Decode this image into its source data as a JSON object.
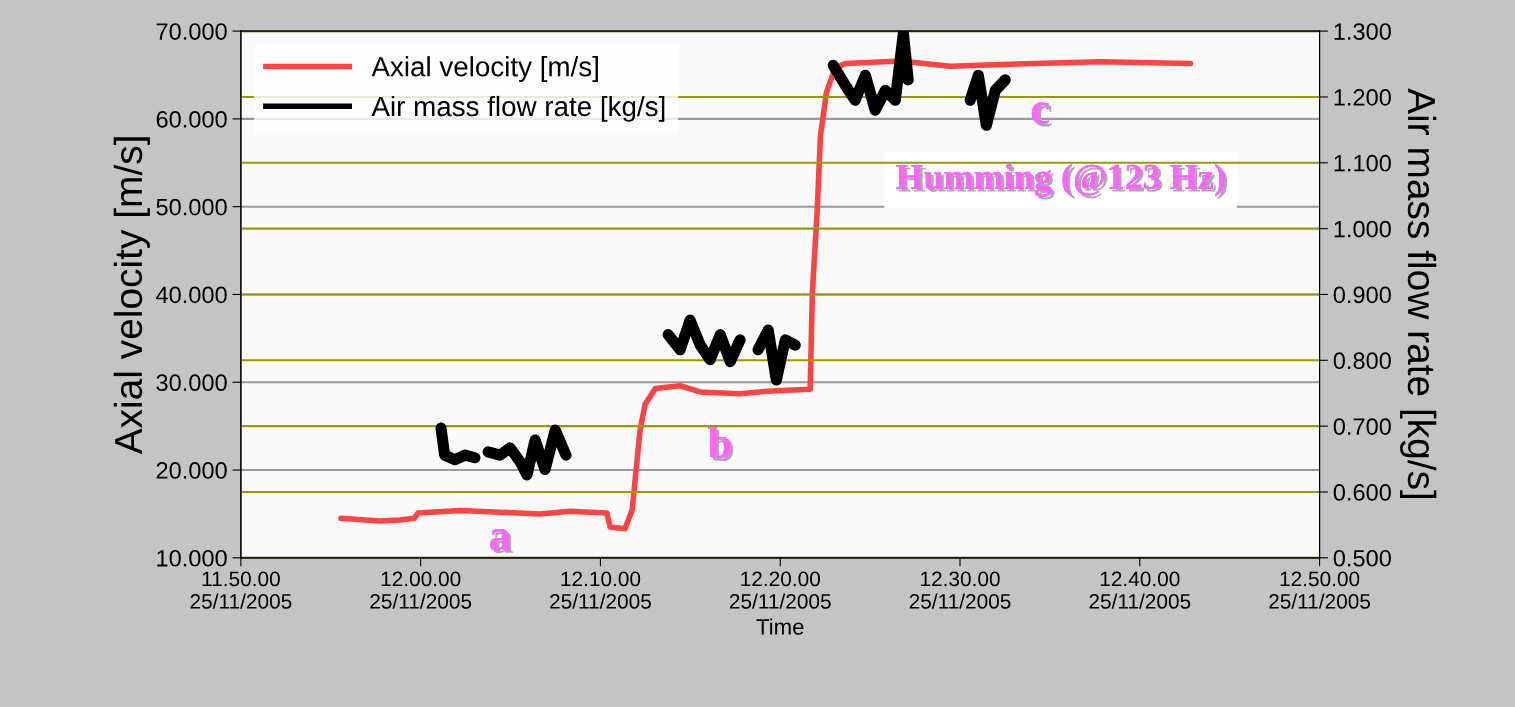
{
  "chart_data": {
    "type": "line",
    "xlabel": "Time",
    "ylabel": "Axial velocity [m/s]",
    "y2label": "Air mass flow rate [kg/s]",
    "xlim": [
      "2005-11-25T11:50",
      "2005-11-25T12:50"
    ],
    "xticks": [
      {
        "value": "2005-11-25T11:50",
        "label": "11.50.00\n25/11/2005"
      },
      {
        "value": "2005-11-25T12:00",
        "label": "12.00.00\n25/11/2005"
      },
      {
        "value": "2005-11-25T12:10",
        "label": "12.10.00\n25/11/2005"
      },
      {
        "value": "2005-11-25T12:20",
        "label": "12.20.00\n25/11/2005"
      },
      {
        "value": "2005-11-25T12:30",
        "label": "12.30.00\n25/11/2005"
      },
      {
        "value": "2005-11-25T12:40",
        "label": "12.40.00\n25/11/2005"
      },
      {
        "value": "2005-11-25T12:50",
        "label": "12.50.00\n25/11/2005"
      }
    ],
    "ylim": [
      10,
      70
    ],
    "yticks": [
      {
        "value": 10,
        "label": "10.000"
      },
      {
        "value": 20,
        "label": "20.000"
      },
      {
        "value": 30,
        "label": "30.000"
      },
      {
        "value": 40,
        "label": "40.000"
      },
      {
        "value": 50,
        "label": "50.000"
      },
      {
        "value": 60,
        "label": "60.000"
      },
      {
        "value": 70,
        "label": "70.000"
      }
    ],
    "y2lim": [
      0.5,
      1.3
    ],
    "y2ticks": [
      {
        "value": 0.5,
        "label": "0.500"
      },
      {
        "value": 0.6,
        "label": "0.600"
      },
      {
        "value": 0.7,
        "label": "0.700"
      },
      {
        "value": 0.8,
        "label": "0.800"
      },
      {
        "value": 0.9,
        "label": "0.900"
      },
      {
        "value": 1.0,
        "label": "1.000"
      },
      {
        "value": 1.1,
        "label": "1.100"
      },
      {
        "value": 1.2,
        "label": "1.200"
      },
      {
        "value": 1.3,
        "label": "1.300"
      }
    ],
    "grid": "y",
    "legend": "top left",
    "series": [
      {
        "name": "Axial velocity [m/s]",
        "color": "#ff4444",
        "x": [
          "2005-11-25T11:55:34",
          "2005-11-25T11:57:44",
          "2005-11-25T11:58:51",
          "2005-11-25T11:59:38",
          "2005-11-25T11:59:51",
          "2005-11-25T12:02:11",
          "2005-11-25T12:04:25",
          "2005-11-25T12:06:38",
          "2005-11-25T12:08:19",
          "2005-11-25T12:10:22",
          "2005-11-25T12:10:32",
          "2005-11-25T12:11:22",
          "2005-11-25T12:11:46",
          "2005-11-25T12:11:59",
          "2005-11-25T12:12:12",
          "2005-11-25T12:12:29",
          "2005-11-25T12:13:03",
          "2005-11-25T12:14:26",
          "2005-11-25T12:15:33",
          "2005-11-25T12:17:46",
          "2005-11-25T12:19:27",
          "2005-11-25T12:21:40",
          "2005-11-25T12:21:47",
          "2005-11-25T12:22:04",
          "2005-11-25T12:22:14",
          "2005-11-25T12:22:34",
          "2005-11-25T12:23:03",
          "2005-11-25T12:23:37",
          "2005-11-25T12:26:41",
          "2005-11-25T12:29:28",
          "2005-11-25T12:32:15",
          "2005-11-25T12:37:49",
          "2005-11-25T12:42:49"
        ],
        "values": [
          14.5,
          14.2,
          14.3,
          14.5,
          15.1,
          15.4,
          15.2,
          15.0,
          15.3,
          15.1,
          13.5,
          13.3,
          15.5,
          20.0,
          24.5,
          27.5,
          29.3,
          29.6,
          28.9,
          28.7,
          29.0,
          29.2,
          40.0,
          50.0,
          58.0,
          63.0,
          65.8,
          66.3,
          66.6,
          66.0,
          66.2,
          66.5,
          66.3
        ]
      },
      {
        "name": "Air mass flow rate [kg/s]",
        "color": "#000000",
        "axis": "y2",
        "x": [
          "2005-11-25T12:01:08",
          "2005-11-25T12:01:20",
          "2005-11-25T12:01:54",
          "2005-11-25T12:02:28",
          "2005-11-25T12:03:01",
          "2005-11-25T12:03:20",
          "2005-11-25T12:03:45",
          "2005-11-25T12:04:25",
          "2005-11-25T12:04:58",
          "2005-11-25T12:05:32",
          "2005-11-25T12:05:55",
          "2005-11-25T12:06:22",
          "2005-11-25T12:06:55",
          "2005-11-25T12:07:29",
          "2005-11-25T12:08:05",
          "2005-11-25T12:11:00",
          "2005-11-25T12:13:46",
          "2005-11-25T12:14:26",
          "2005-11-25T12:14:59",
          "2005-11-25T12:15:33",
          "2005-11-25T12:16:06",
          "2005-11-25T12:16:40",
          "2005-11-25T12:17:13",
          "2005-11-25T12:17:46",
          "2005-11-25T12:18:15",
          "2005-11-25T12:18:46",
          "2005-11-25T12:19:20",
          "2005-11-25T12:19:47",
          "2005-11-25T12:20:17",
          "2005-11-25T12:20:50",
          "2005-11-25T12:22:00",
          "2005-11-25T12:22:57",
          "2005-11-25T12:23:37",
          "2005-11-25T12:24:10",
          "2005-11-25T12:24:44",
          "2005-11-25T12:25:17",
          "2005-11-25T12:25:51",
          "2005-11-25T12:26:24",
          "2005-11-25T12:26:51",
          "2005-11-25T12:27:07",
          "2005-11-25T12:29:00",
          "2005-11-25T12:30:34",
          "2005-11-25T12:31:01",
          "2005-11-25T12:31:28",
          "2005-11-25T12:31:58",
          "2005-11-25T12:32:31"
        ],
        "values": [
          0.697,
          0.656,
          0.649,
          0.656,
          0.652,
          null,
          0.661,
          0.656,
          0.667,
          0.646,
          0.626,
          0.679,
          0.634,
          0.694,
          0.656,
          null,
          0.839,
          0.816,
          0.861,
          0.823,
          0.801,
          0.839,
          0.798,
          0.831,
          null,
          0.816,
          0.846,
          0.77,
          0.831,
          0.823,
          null,
          1.248,
          1.218,
          1.195,
          1.233,
          1.18,
          1.21,
          1.195,
          1.297,
          1.226,
          null,
          1.195,
          1.233,
          1.157,
          1.21,
          1.226
        ]
      }
    ],
    "annotations": [
      "a",
      "b",
      "c",
      "Humming (@123 Hz)"
    ]
  }
}
